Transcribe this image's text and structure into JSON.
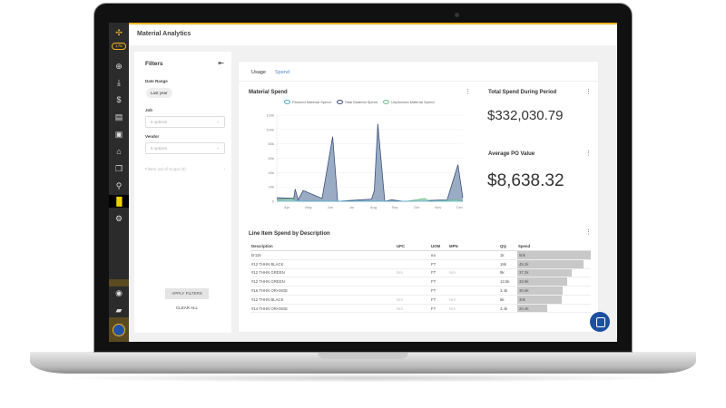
{
  "app": {
    "title": "Material Analytics",
    "badge": "176",
    "accent": "#f0b323"
  },
  "sidebar": {
    "icons": [
      "logo-icon",
      "plus-circle-icon",
      "download-icon",
      "dollar-icon",
      "document-icon",
      "save-icon",
      "warehouse-icon",
      "copy-icon",
      "location-pin-icon",
      "analytics-icon",
      "gear-icon",
      "user-icon",
      "chat-icon",
      "avatar"
    ]
  },
  "filters": {
    "title": "Filters",
    "date_range_label": "Date Range",
    "date_range_value": "Last year",
    "job_label": "Job",
    "job_value": "6 options",
    "vendor_label": "Vendor",
    "vendor_value": "5 options",
    "out_of_scope": "Filters out of scope (0)",
    "apply": "APPLY FILTERS",
    "clear": "CLEAR ALL"
  },
  "tabs": [
    {
      "label": "Usage",
      "active": false
    },
    {
      "label": "Spend",
      "active": true
    }
  ],
  "chart_data": {
    "type": "area",
    "title": "Material Spend",
    "legend": [
      "Planned Material Spend",
      "Total Material Spend",
      "Unplanned Material Spend"
    ],
    "x_ticks": [
      "Apr",
      "May",
      "Jun",
      "Jul",
      "Aug",
      "Sep",
      "Oct",
      "Nov",
      "Dec"
    ],
    "y_ticks": [
      "0",
      "20k",
      "40k",
      "60k",
      "80k",
      "100k",
      "120k"
    ],
    "ylim": [
      0,
      120000
    ],
    "series": [
      {
        "name": "Total Material Spend",
        "color": "#3d4f7c",
        "points": [
          [
            "Mar 20",
            5000
          ],
          [
            "Apr 13",
            4000
          ],
          [
            "Apr 15",
            17000
          ],
          [
            "Apr 19",
            2000
          ],
          [
            "Apr 26",
            15000
          ],
          [
            "May 23",
            4000
          ],
          [
            "Jun 7",
            90000
          ],
          [
            "Jun 14",
            0
          ],
          [
            "Aug 1",
            3000
          ],
          [
            "Aug 5",
            15000
          ],
          [
            "Aug 10",
            108000
          ],
          [
            "Aug 20",
            0
          ],
          [
            "Aug 30",
            2000
          ],
          [
            "Sep 15",
            0
          ],
          [
            "Nov 16",
            2000
          ],
          [
            "Dec 1",
            51000
          ],
          [
            "Dec 8",
            5000
          ]
        ]
      },
      {
        "name": "Unplanned Material Spend",
        "color": "#6fbf8f",
        "points": [
          [
            "Mar 20",
            2000
          ],
          [
            "Apr 10",
            3000
          ],
          [
            "Apr 20",
            0
          ],
          [
            "Sep 20",
            0
          ],
          [
            "Oct 15",
            4000
          ],
          [
            "Oct 22",
            0
          ],
          [
            "Nov 28",
            2000
          ],
          [
            "Dec 8",
            0
          ]
        ]
      },
      {
        "name": "Planned Material Spend",
        "color": "#5aa8d8",
        "points": [
          [
            "Mar 20",
            0
          ],
          [
            "Dec 8",
            0
          ]
        ]
      }
    ]
  },
  "total_spend": {
    "title": "Total Spend During Period",
    "value": "$332,030.79"
  },
  "avg_po": {
    "title": "Average PO Value",
    "value": "$8,638.32"
  },
  "line_items": {
    "title": "Line Item Spend by Description",
    "columns": [
      "Description",
      "UPC",
      "UOM",
      "MPN",
      "Qty",
      "Spend"
    ],
    "rows": [
      {
        "description": "br115",
        "upc": "",
        "uom": "ea",
        "mpn": "",
        "qty": "1k",
        "spend": "50k",
        "spend_value": 50000
      },
      {
        "description": "#12 THHN BLACK",
        "upc": "",
        "uom": "FT",
        "mpn": "",
        "qty": "18k",
        "spend": "45.2k",
        "spend_value": 45200
      },
      {
        "description": "#12 THHN GREEN",
        "upc": "N/A",
        "uom": "FT",
        "mpn": "N/A",
        "qty": "9k",
        "spend": "37.2k",
        "spend_value": 37200
      },
      {
        "description": "#12 THHN GREEN",
        "upc": "",
        "uom": "FT",
        "mpn": "",
        "qty": "13.5k",
        "spend": "33.9k",
        "spend_value": 33900
      },
      {
        "description": "#16 THHN ORANGE",
        "upc": "",
        "uom": "FT",
        "mpn": "",
        "qty": "3.4k",
        "spend": "30.6k",
        "spend_value": 30600
      },
      {
        "description": "#12 THHN BLACK",
        "upc": "N/A",
        "uom": "FT",
        "mpn": "N/A",
        "qty": "6k",
        "spend": "30k",
        "spend_value": 30000
      },
      {
        "description": "#14 THHN ORANGE",
        "upc": "N/A",
        "uom": "FT",
        "mpn": "N/A",
        "qty": "3.4k",
        "spend": "20.4k",
        "spend_value": 20400
      }
    ]
  }
}
